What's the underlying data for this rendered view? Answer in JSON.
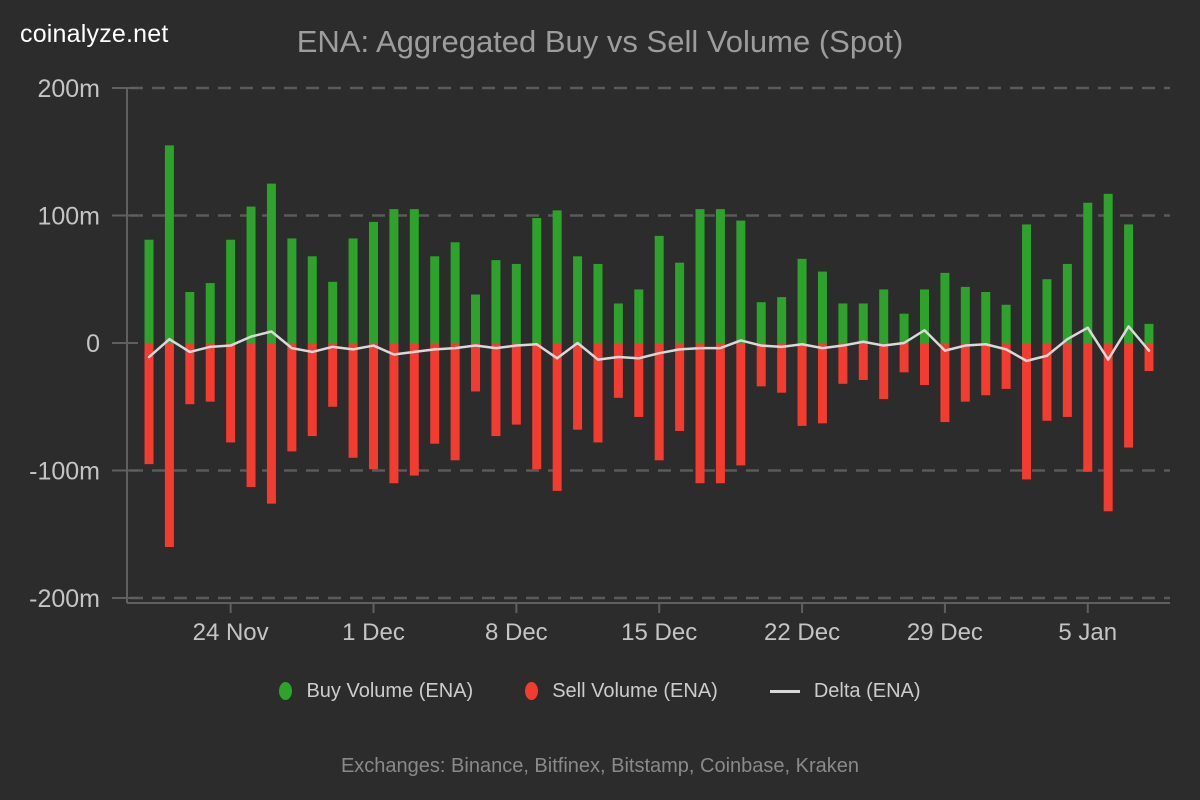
{
  "logo": {
    "text": "coinalyze.net"
  },
  "header": {
    "title": "ENA: Aggregated Buy vs Sell Volume (Spot)"
  },
  "legend": {
    "items": [
      {
        "label": "Buy Volume (ENA)",
        "marker": "dot",
        "color": "#2da32b"
      },
      {
        "label": "Sell Volume (ENA)",
        "marker": "dot",
        "color": "#f43b30"
      },
      {
        "label": "Delta (ENA)",
        "marker": "line",
        "color": "#d9d9d9"
      }
    ]
  },
  "footer": {
    "text": "Exchanges: Binance, Bitfinex, Bitstamp, Coinbase, Kraken"
  },
  "chart_data": {
    "type": "bar",
    "title": "ENA: Aggregated Buy vs Sell Volume (Spot)",
    "unit": "millions",
    "colors": {
      "background": "#2c2c2c",
      "grid": "#5a5a5a",
      "axis": "#606060",
      "tick_text": "#c4c4c4"
    },
    "x": [
      "20 Nov",
      "21 Nov",
      "22 Nov",
      "23 Nov",
      "24 Nov",
      "25 Nov",
      "26 Nov",
      "27 Nov",
      "28 Nov",
      "29 Nov",
      "30 Nov",
      "1 Dec",
      "2 Dec",
      "3 Dec",
      "4 Dec",
      "5 Dec",
      "6 Dec",
      "7 Dec",
      "8 Dec",
      "9 Dec",
      "10 Dec",
      "11 Dec",
      "12 Dec",
      "13 Dec",
      "14 Dec",
      "15 Dec",
      "16 Dec",
      "17 Dec",
      "18 Dec",
      "19 Dec",
      "20 Dec",
      "21 Dec",
      "22 Dec",
      "23 Dec",
      "24 Dec",
      "25 Dec",
      "26 Dec",
      "27 Dec",
      "28 Dec",
      "29 Dec",
      "30 Dec",
      "31 Dec",
      "1 Jan",
      "2 Jan",
      "3 Jan",
      "4 Jan",
      "5 Jan",
      "6 Jan",
      "7 Jan",
      "8 Jan"
    ],
    "series": [
      {
        "name": "Buy Volume (ENA)",
        "type": "bar",
        "color": "#2da32b",
        "values": [
          81,
          155,
          40,
          47,
          81,
          107,
          125,
          82,
          68,
          48,
          82,
          95,
          105,
          105,
          68,
          79,
          38,
          65,
          62,
          98,
          104,
          68,
          62,
          31,
          42,
          84,
          63,
          105,
          105,
          96,
          32,
          36,
          66,
          56,
          31,
          31,
          42,
          23,
          42,
          55,
          44,
          40,
          30,
          93,
          50,
          62,
          110,
          117,
          93,
          15
        ]
      },
      {
        "name": "Sell Volume (ENA)",
        "type": "bar",
        "color": "#f43b30",
        "values": [
          -95,
          -160,
          -48,
          -46,
          -78,
          -113,
          -126,
          -85,
          -73,
          -50,
          -90,
          -99,
          -110,
          -104,
          -79,
          -92,
          -38,
          -73,
          -64,
          -99,
          -116,
          -68,
          -78,
          -43,
          -58,
          -92,
          -69,
          -110,
          -110,
          -96,
          -34,
          -39,
          -65,
          -63,
          -32,
          -29,
          -44,
          -23,
          -33,
          -62,
          -46,
          -41,
          -36,
          -107,
          -61,
          -58,
          -101,
          -132,
          -82,
          -22
        ]
      },
      {
        "name": "Delta (ENA)",
        "type": "line",
        "color": "#d9d9d9",
        "values": [
          -11,
          3,
          -7,
          -3,
          -2,
          5,
          9,
          -4,
          -7,
          -3,
          -5,
          -2,
          -9,
          -7,
          -5,
          -4,
          -2,
          -4,
          -2,
          -1,
          -12,
          0,
          -13,
          -11,
          -12,
          -8,
          -5,
          -4,
          -4,
          2,
          -2,
          -3,
          -1,
          -4,
          -2,
          1,
          -2,
          0,
          10,
          -6,
          -2,
          -1,
          -5,
          -14,
          -10,
          3,
          12,
          -13,
          13,
          -6
        ]
      }
    ],
    "y_axis": {
      "min": -200,
      "max": 200,
      "tick_step": 100,
      "grid": "dashed",
      "tick_labels": [
        "200m",
        "100m",
        "0",
        "-100m",
        "-200m"
      ],
      "tick_values": [
        200,
        100,
        0,
        -100,
        -200
      ]
    },
    "x_ticks": [
      {
        "index": 4,
        "label": "24 Nov"
      },
      {
        "index": 11,
        "label": "1 Dec"
      },
      {
        "index": 18,
        "label": "8 Dec"
      },
      {
        "index": 25,
        "label": "15 Dec"
      },
      {
        "index": 32,
        "label": "22 Dec"
      },
      {
        "index": 39,
        "label": "29 Dec"
      },
      {
        "index": 46,
        "label": "5 Jan"
      }
    ],
    "legend_position": "bottom"
  }
}
